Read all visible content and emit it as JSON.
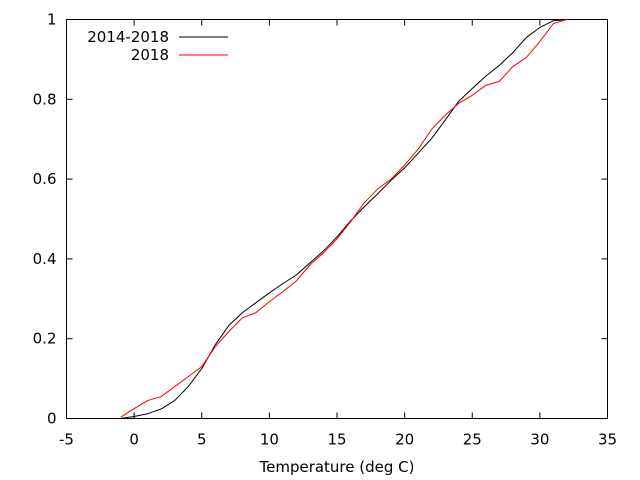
{
  "chart_data": {
    "type": "line",
    "title": "",
    "xlabel": "Temperature (deg C)",
    "ylabel": "",
    "xlim": [
      -5,
      35
    ],
    "ylim": [
      0,
      1
    ],
    "xticks": [
      -5,
      0,
      5,
      10,
      15,
      20,
      25,
      30,
      35
    ],
    "yticks": [
      0,
      0.2,
      0.4,
      0.6,
      0.8,
      1
    ],
    "xtick_labels": [
      "-5",
      "0",
      "5",
      "10",
      "15",
      "20",
      "25",
      "30",
      "35"
    ],
    "ytick_labels": [
      "0",
      "0.2",
      "0.4",
      "0.6",
      "0.8",
      "1"
    ],
    "grid": false,
    "legend": {
      "position": "top-left"
    },
    "series": [
      {
        "name": "2014-2018",
        "color": "#000000",
        "x": [
          -1,
          0,
          1,
          2,
          3,
          4,
          5,
          6,
          7,
          8,
          9,
          10,
          11,
          12,
          13,
          14,
          15,
          16,
          17,
          18,
          19,
          20,
          21,
          22,
          23,
          24,
          25,
          26,
          27,
          28,
          29,
          30,
          31,
          32
        ],
        "y": [
          0.0,
          0.005,
          0.012,
          0.024,
          0.045,
          0.08,
          0.125,
          0.185,
          0.233,
          0.265,
          0.29,
          0.315,
          0.338,
          0.36,
          0.39,
          0.42,
          0.455,
          0.495,
          0.53,
          0.563,
          0.597,
          0.628,
          0.665,
          0.702,
          0.748,
          0.795,
          0.827,
          0.858,
          0.885,
          0.917,
          0.955,
          0.98,
          0.997,
          1.0
        ]
      },
      {
        "name": "2018",
        "color": "#ff0000",
        "x": [
          -1,
          0,
          1,
          2,
          3,
          4,
          5,
          6,
          7,
          8,
          9,
          10,
          11,
          12,
          13,
          14,
          15,
          16,
          17,
          18,
          19,
          20,
          21,
          22,
          23,
          24,
          25,
          26,
          27,
          28,
          29,
          30,
          31,
          32
        ],
        "y": [
          0.003,
          0.025,
          0.045,
          0.055,
          0.08,
          0.105,
          0.13,
          0.18,
          0.218,
          0.252,
          0.265,
          0.293,
          0.318,
          0.345,
          0.385,
          0.415,
          0.45,
          0.493,
          0.54,
          0.575,
          0.6,
          0.635,
          0.675,
          0.725,
          0.76,
          0.79,
          0.81,
          0.835,
          0.845,
          0.882,
          0.905,
          0.945,
          0.99,
          1.0
        ]
      }
    ]
  }
}
